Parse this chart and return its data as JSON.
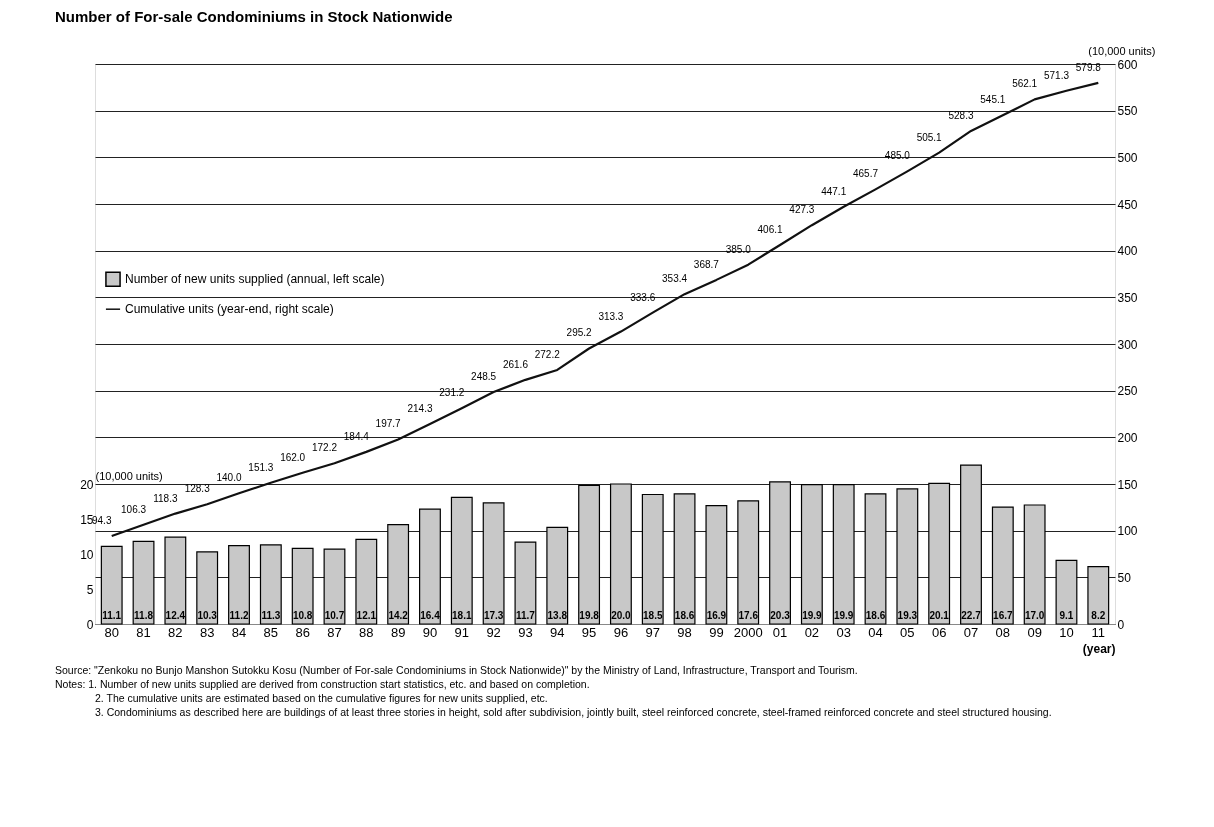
{
  "chart_data": {
    "type": "bar",
    "title": "Number of For-sale Condominiums in Stock Nationwide",
    "categories": [
      "80",
      "81",
      "82",
      "83",
      "84",
      "85",
      "86",
      "87",
      "88",
      "89",
      "90",
      "91",
      "92",
      "93",
      "94",
      "95",
      "96",
      "97",
      "98",
      "99",
      "2000",
      "01",
      "02",
      "03",
      "04",
      "05",
      "06",
      "07",
      "08",
      "09",
      "10",
      "11"
    ],
    "series": [
      {
        "name": "Number of new units supplied (annual, left scale)",
        "color": "#c8c8c8",
        "values": [
          11.1,
          11.8,
          12.4,
          10.3,
          11.2,
          11.3,
          10.8,
          10.7,
          12.1,
          14.2,
          16.4,
          18.1,
          17.3,
          11.7,
          13.8,
          19.8,
          20,
          18.5,
          18.6,
          16.9,
          17.6,
          20.3,
          19.9,
          19.9,
          18.6,
          19.3,
          20.1,
          22.7,
          16.7,
          17,
          9.1,
          8.2
        ],
        "value_labels": [
          "11.1",
          "11.8",
          "12.4",
          "10.3",
          "11.2",
          "11.3",
          "10.8",
          "10.7",
          "12.1",
          "14.2",
          "16.4",
          "18.1",
          "17.3",
          "11.7",
          "13.8",
          "19.8",
          "20.0",
          "18.5",
          "18.6",
          "16.9",
          "17.6",
          "20.3",
          "19.9",
          "19.9",
          "18.6",
          "19.3",
          "20.1",
          "22.7",
          "16.7",
          "17.0",
          "9.1",
          "8.2"
        ]
      },
      {
        "name": "Cumulative units (year-end, right scale)",
        "type": "line",
        "axis": "y2",
        "color": "#111111",
        "values": [
          94.3,
          106.3,
          118.3,
          128.3,
          140,
          151.3,
          162,
          172.2,
          184.4,
          197.7,
          214.3,
          231.2,
          248.5,
          261.6,
          272.2,
          295.2,
          313.3,
          333.6,
          353.4,
          368.7,
          385,
          406.1,
          427.3,
          447.1,
          465.7,
          485,
          505.1,
          528.3,
          545.1,
          562.1,
          571.3,
          579.8
        ],
        "value_labels": [
          "94.3",
          "106.3",
          "118.3",
          "128.3",
          "140.0",
          "151.3",
          "162.0",
          "172.2",
          "184.4",
          "197.7",
          "214.3",
          "231.2",
          "248.5",
          "261.6",
          "272.2",
          "295.2",
          "313.3",
          "333.6",
          "353.4",
          "368.7",
          "385.0",
          "406.1",
          "427.3",
          "447.1",
          "465.7",
          "485.0",
          "505.1",
          "528.3",
          "545.1",
          "562.1",
          "571.3",
          "579.8"
        ]
      }
    ],
    "ylabel": "(10,000 units)",
    "y2label": "(10,000 units)",
    "xlabel": "(year)",
    "ylim": [
      0,
      80
    ],
    "yticks": [
      0,
      5,
      10,
      15,
      20
    ],
    "y2lim": [
      0,
      600
    ],
    "y2ticks": [
      0,
      50,
      100,
      150,
      200,
      250,
      300,
      350,
      400,
      450,
      500,
      550,
      600
    ],
    "grid": true,
    "legend": "left",
    "marker": "none",
    "line_style": "solid",
    "annotations": [
      "Source: \"Zenkoku no Bunjo Manshon Sutokku Kosu (Number of For-sale Condominiums in Stock Nationwide)\" by the Ministry of Land, Infrastructure, Transport and Tourism.",
      "Notes: 1. Number of new units supplied are derived from construction start statistics, etc. and based on completion.",
      "2. The cumulative units are estimated based on the cumulative figures for new units supplied, etc.",
      "3. Condominiums as described here are buildings of at least three stories in height, sold after subdivision, jointly built, steel reinforced concrete, steel-framed reinforced concrete and steel structured housing."
    ]
  }
}
